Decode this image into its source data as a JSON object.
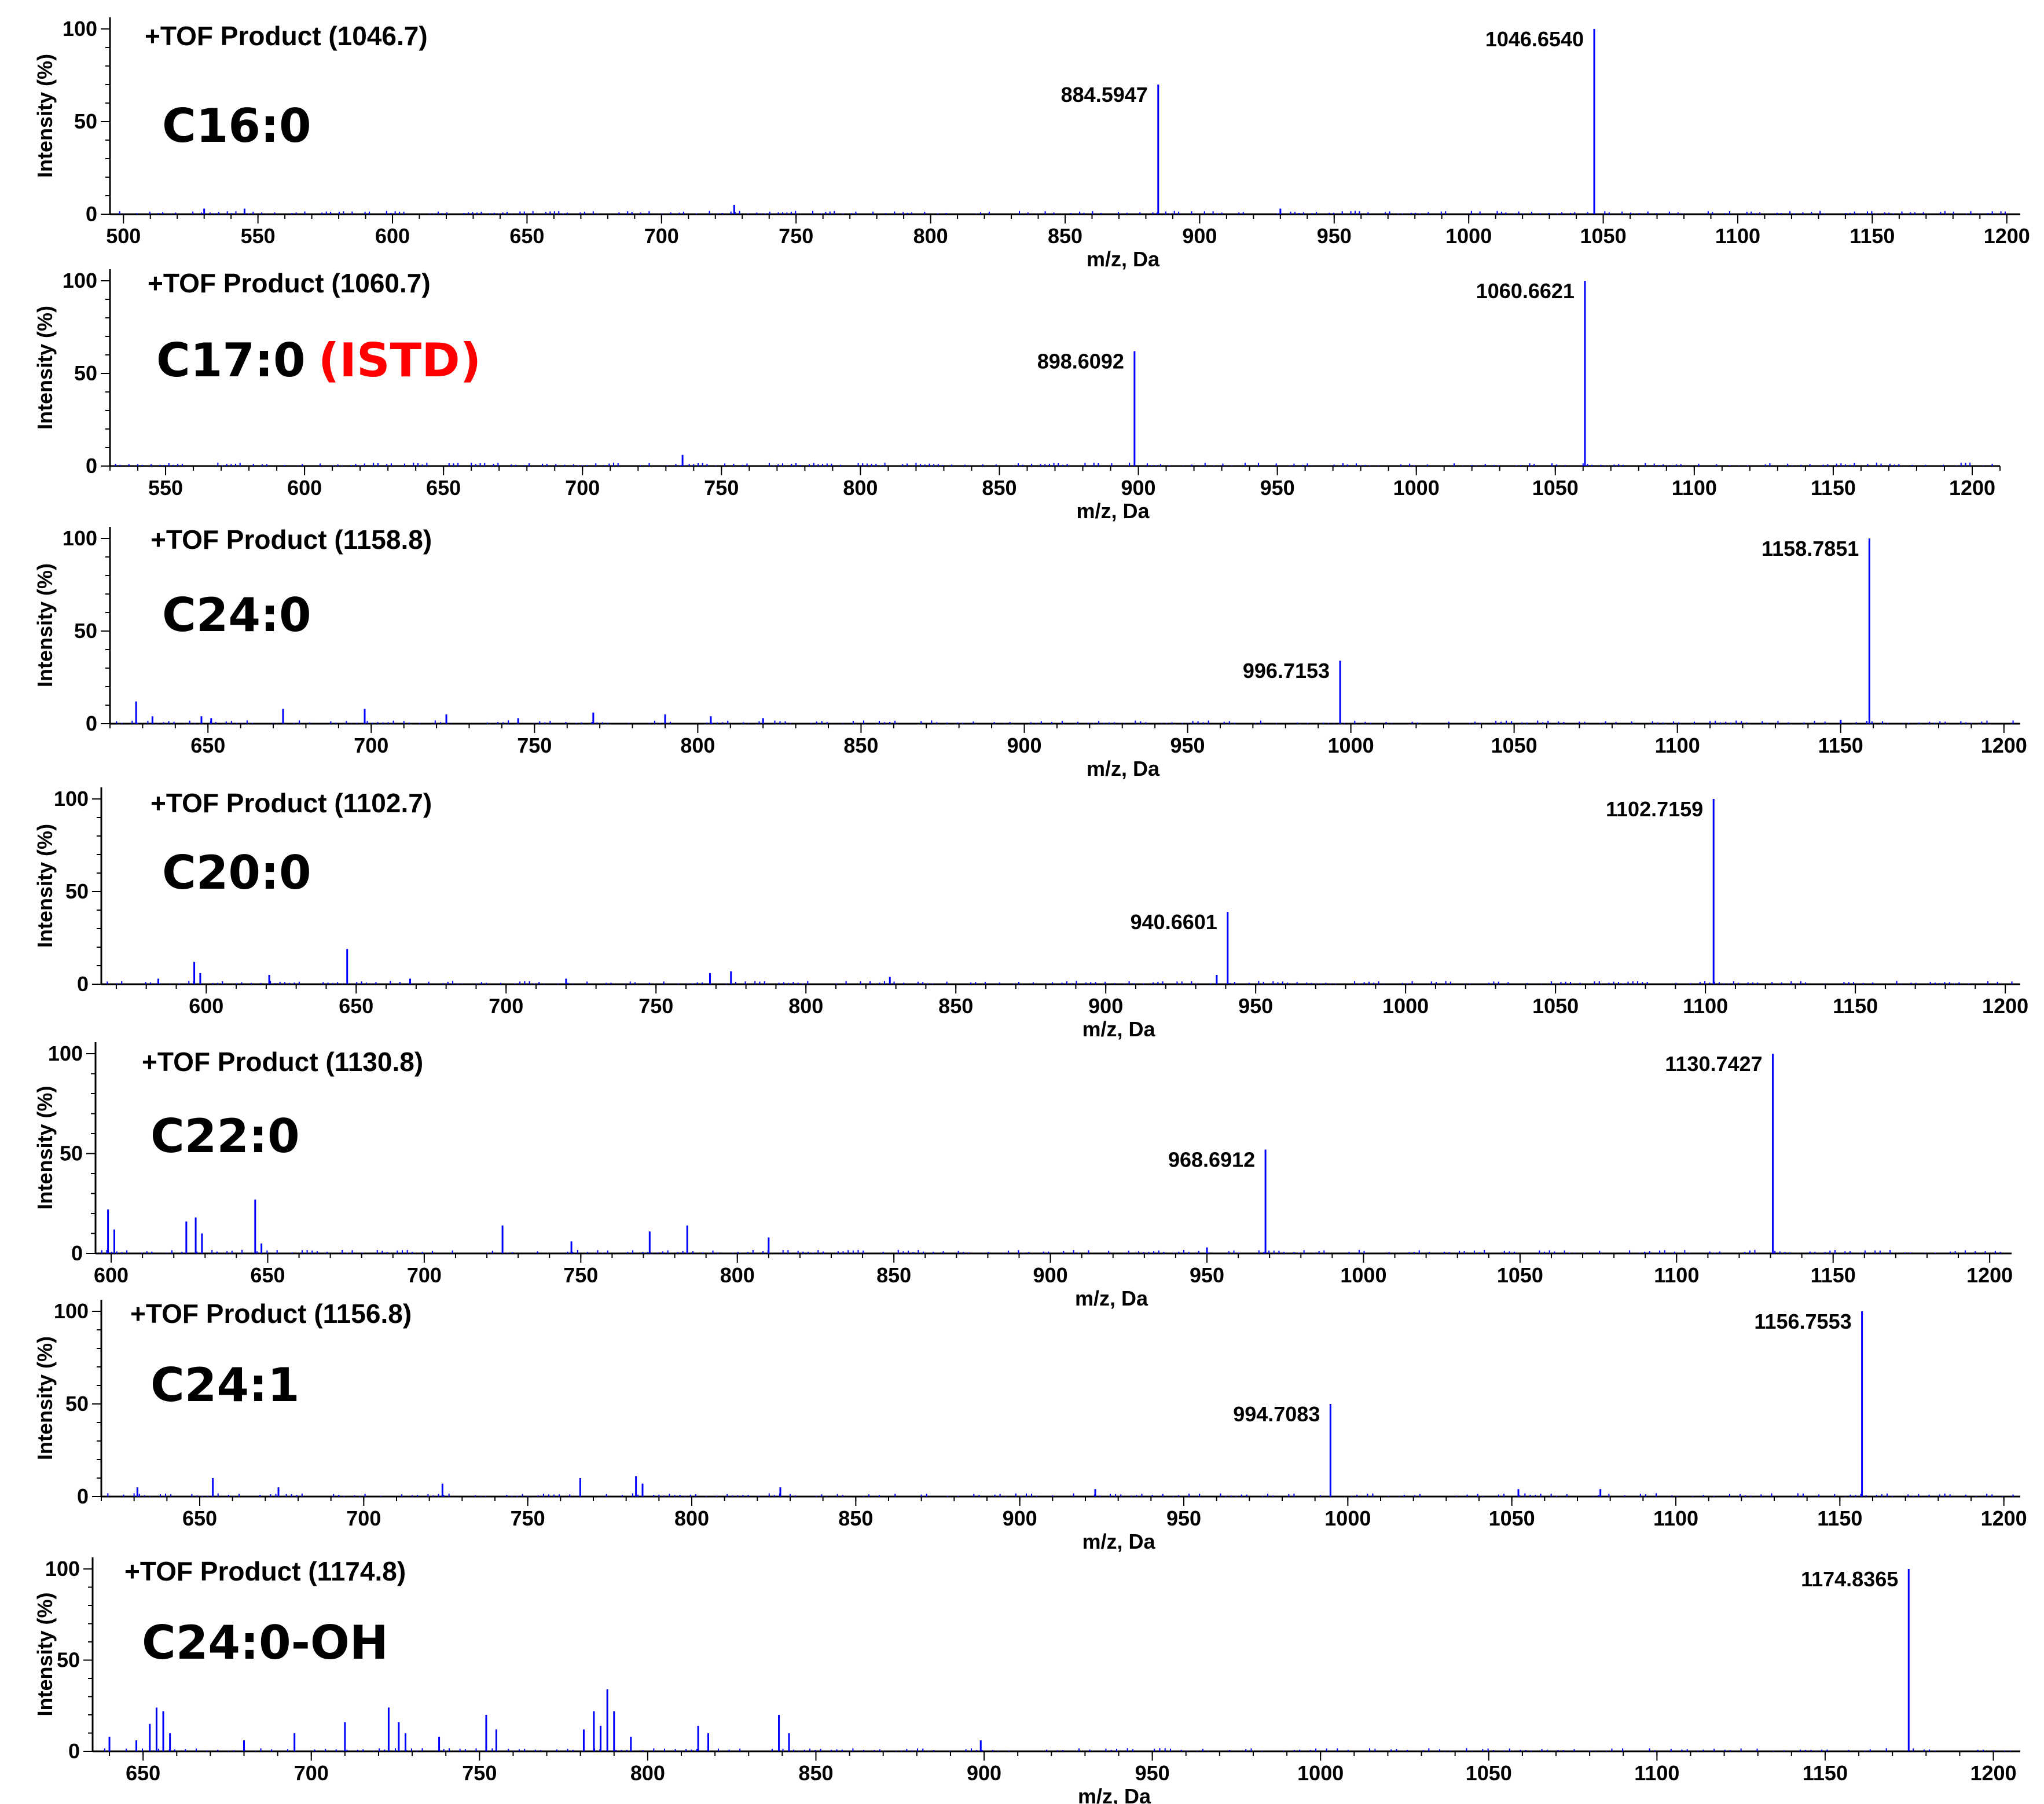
{
  "colors": {
    "peak": "#0000ff",
    "istd": "#ff0000",
    "axis": "#000000"
  },
  "chart_data": [
    {
      "type": "spectrum",
      "title": "+TOF Product (1046.7)",
      "analyte": "C16:0",
      "xlabel": "m/z, Da",
      "ylabel": "Intensity (%)",
      "xlim": [
        495,
        1205
      ],
      "xticks": [
        500,
        550,
        600,
        650,
        700,
        750,
        800,
        850,
        900,
        950,
        1000,
        1050,
        1100,
        1150,
        1200
      ],
      "ylim": [
        0,
        100
      ],
      "yticks": [
        0,
        50,
        100
      ],
      "peaks": [
        {
          "mz": 884.5947,
          "intensity": 70,
          "label": "884.5947"
        },
        {
          "mz": 1046.654,
          "intensity": 100,
          "label": "1046.6540"
        }
      ],
      "minor_peaks": [
        {
          "mz": 530,
          "intensity": 3
        },
        {
          "mz": 545,
          "intensity": 3
        },
        {
          "mz": 727,
          "intensity": 5
        },
        {
          "mz": 930,
          "intensity": 3
        }
      ]
    },
    {
      "type": "spectrum",
      "title": "+TOF Product (1060.7)",
      "analyte": "C17:0",
      "tag": "(ISTD)",
      "xlabel": "m/z, Da",
      "ylabel": "Intensity (%)",
      "xlim": [
        530,
        1210
      ],
      "xticks": [
        550,
        600,
        650,
        700,
        750,
        800,
        850,
        900,
        950,
        1000,
        1050,
        1100,
        1150,
        1200
      ],
      "ylim": [
        0,
        100
      ],
      "yticks": [
        0,
        50,
        100
      ],
      "peaks": [
        {
          "mz": 898.6092,
          "intensity": 62,
          "label": "898.6092"
        },
        {
          "mz": 1060.6621,
          "intensity": 100,
          "label": "1060.6621"
        }
      ],
      "minor_peaks": [
        {
          "mz": 736,
          "intensity": 6
        }
      ]
    },
    {
      "type": "spectrum",
      "title": "+TOF Product (1158.8)",
      "analyte": "C24:0",
      "xlabel": "m/z, Da",
      "ylabel": "Intensity (%)",
      "xlim": [
        620,
        1205
      ],
      "xticks": [
        650,
        700,
        750,
        800,
        850,
        900,
        950,
        1000,
        1050,
        1100,
        1150,
        1200
      ],
      "ylim": [
        0,
        100
      ],
      "yticks": [
        0,
        50,
        100
      ],
      "peaks": [
        {
          "mz": 996.7153,
          "intensity": 34,
          "label": "996.7153"
        },
        {
          "mz": 1158.7851,
          "intensity": 100,
          "label": "1158.7851"
        }
      ],
      "minor_peaks": [
        {
          "mz": 628,
          "intensity": 12
        },
        {
          "mz": 633,
          "intensity": 4
        },
        {
          "mz": 648,
          "intensity": 4
        },
        {
          "mz": 651,
          "intensity": 3
        },
        {
          "mz": 673,
          "intensity": 8
        },
        {
          "mz": 698,
          "intensity": 8
        },
        {
          "mz": 723,
          "intensity": 5
        },
        {
          "mz": 745,
          "intensity": 3
        },
        {
          "mz": 768,
          "intensity": 6
        },
        {
          "mz": 790,
          "intensity": 5
        },
        {
          "mz": 804,
          "intensity": 4
        },
        {
          "mz": 820,
          "intensity": 3
        },
        {
          "mz": 1150,
          "intensity": 2
        }
      ]
    },
    {
      "type": "spectrum",
      "title": "+TOF Product (1102.7)",
      "analyte": "C20:0",
      "xlabel": "m/z, Da",
      "ylabel": "Intensity (%)",
      "xlim": [
        565,
        1205
      ],
      "xticks": [
        600,
        650,
        700,
        750,
        800,
        850,
        900,
        950,
        1000,
        1050,
        1100,
        1150,
        1200
      ],
      "ylim": [
        0,
        100
      ],
      "yticks": [
        0,
        50,
        100
      ],
      "peaks": [
        {
          "mz": 940.6601,
          "intensity": 39,
          "label": "940.6601"
        },
        {
          "mz": 1102.7159,
          "intensity": 100,
          "label": "1102.7159"
        }
      ],
      "minor_peaks": [
        {
          "mz": 584,
          "intensity": 3
        },
        {
          "mz": 596,
          "intensity": 12
        },
        {
          "mz": 598,
          "intensity": 6
        },
        {
          "mz": 621,
          "intensity": 5
        },
        {
          "mz": 647,
          "intensity": 19
        },
        {
          "mz": 668,
          "intensity": 3
        },
        {
          "mz": 720,
          "intensity": 3
        },
        {
          "mz": 768,
          "intensity": 6
        },
        {
          "mz": 775,
          "intensity": 7
        },
        {
          "mz": 828,
          "intensity": 4
        },
        {
          "mz": 937,
          "intensity": 5
        }
      ]
    },
    {
      "type": "spectrum",
      "title": "+TOF Product (1130.8)",
      "analyte": "C22:0",
      "xlabel": "m/z, Da",
      "ylabel": "Intensity (%)",
      "xlim": [
        595,
        1207
      ],
      "xticks": [
        600,
        650,
        700,
        750,
        800,
        850,
        900,
        950,
        1000,
        1050,
        1100,
        1150,
        1200
      ],
      "ylim": [
        0,
        100
      ],
      "yticks": [
        0,
        50,
        100
      ],
      "peaks": [
        {
          "mz": 968.6912,
          "intensity": 52,
          "label": "968.6912"
        },
        {
          "mz": 1130.7427,
          "intensity": 100,
          "label": "1130.7427"
        }
      ],
      "minor_peaks": [
        {
          "mz": 599,
          "intensity": 22
        },
        {
          "mz": 601,
          "intensity": 12
        },
        {
          "mz": 624,
          "intensity": 16
        },
        {
          "mz": 627,
          "intensity": 18
        },
        {
          "mz": 629,
          "intensity": 10
        },
        {
          "mz": 646,
          "intensity": 27
        },
        {
          "mz": 648,
          "intensity": 5
        },
        {
          "mz": 725,
          "intensity": 14
        },
        {
          "mz": 747,
          "intensity": 6
        },
        {
          "mz": 772,
          "intensity": 11
        },
        {
          "mz": 784,
          "intensity": 14
        },
        {
          "mz": 810,
          "intensity": 8
        },
        {
          "mz": 950,
          "intensity": 3
        }
      ]
    },
    {
      "type": "spectrum",
      "title": "+TOF Product (1156.8)",
      "analyte": "C24:1",
      "xlabel": "m/z, Da",
      "ylabel": "Intensity (%)",
      "xlim": [
        620,
        1205
      ],
      "xticks": [
        650,
        700,
        750,
        800,
        850,
        900,
        950,
        1000,
        1050,
        1100,
        1150,
        1200
      ],
      "ylim": [
        0,
        100
      ],
      "yticks": [
        0,
        50,
        100
      ],
      "peaks": [
        {
          "mz": 994.7083,
          "intensity": 50,
          "label": "994.7083"
        },
        {
          "mz": 1156.7553,
          "intensity": 100,
          "label": "1156.7553"
        }
      ],
      "minor_peaks": [
        {
          "mz": 631,
          "intensity": 5
        },
        {
          "mz": 654,
          "intensity": 10
        },
        {
          "mz": 674,
          "intensity": 5
        },
        {
          "mz": 724,
          "intensity": 7
        },
        {
          "mz": 766,
          "intensity": 10
        },
        {
          "mz": 783,
          "intensity": 11
        },
        {
          "mz": 785,
          "intensity": 7
        },
        {
          "mz": 827,
          "intensity": 5
        },
        {
          "mz": 923,
          "intensity": 4
        },
        {
          "mz": 1052,
          "intensity": 4
        },
        {
          "mz": 1077,
          "intensity": 4
        }
      ]
    },
    {
      "type": "spectrum",
      "title": "+TOF Product (1174.8)",
      "analyte": "C24:0-OH",
      "xlabel": "m/z, Da",
      "ylabel": "Intensity (%)",
      "xlim": [
        635,
        1208
      ],
      "xticks": [
        650,
        700,
        750,
        800,
        850,
        900,
        950,
        1000,
        1050,
        1100,
        1150,
        1200
      ],
      "ylim": [
        0,
        100
      ],
      "yticks": [
        0,
        50,
        100
      ],
      "peaks": [
        {
          "mz": 1174.8365,
          "intensity": 100,
          "label": "1174.8365"
        }
      ],
      "minor_peaks": [
        {
          "mz": 640,
          "intensity": 8
        },
        {
          "mz": 648,
          "intensity": 6
        },
        {
          "mz": 652,
          "intensity": 15
        },
        {
          "mz": 654,
          "intensity": 24
        },
        {
          "mz": 656,
          "intensity": 22
        },
        {
          "mz": 658,
          "intensity": 10
        },
        {
          "mz": 680,
          "intensity": 6
        },
        {
          "mz": 695,
          "intensity": 10
        },
        {
          "mz": 710,
          "intensity": 16
        },
        {
          "mz": 723,
          "intensity": 24
        },
        {
          "mz": 726,
          "intensity": 16
        },
        {
          "mz": 728,
          "intensity": 10
        },
        {
          "mz": 738,
          "intensity": 8
        },
        {
          "mz": 752,
          "intensity": 20
        },
        {
          "mz": 755,
          "intensity": 12
        },
        {
          "mz": 781,
          "intensity": 12
        },
        {
          "mz": 784,
          "intensity": 22
        },
        {
          "mz": 786,
          "intensity": 14
        },
        {
          "mz": 788,
          "intensity": 34
        },
        {
          "mz": 790,
          "intensity": 22
        },
        {
          "mz": 795,
          "intensity": 8
        },
        {
          "mz": 815,
          "intensity": 14
        },
        {
          "mz": 818,
          "intensity": 10
        },
        {
          "mz": 839,
          "intensity": 20
        },
        {
          "mz": 842,
          "intensity": 10
        },
        {
          "mz": 899,
          "intensity": 6
        }
      ]
    }
  ]
}
